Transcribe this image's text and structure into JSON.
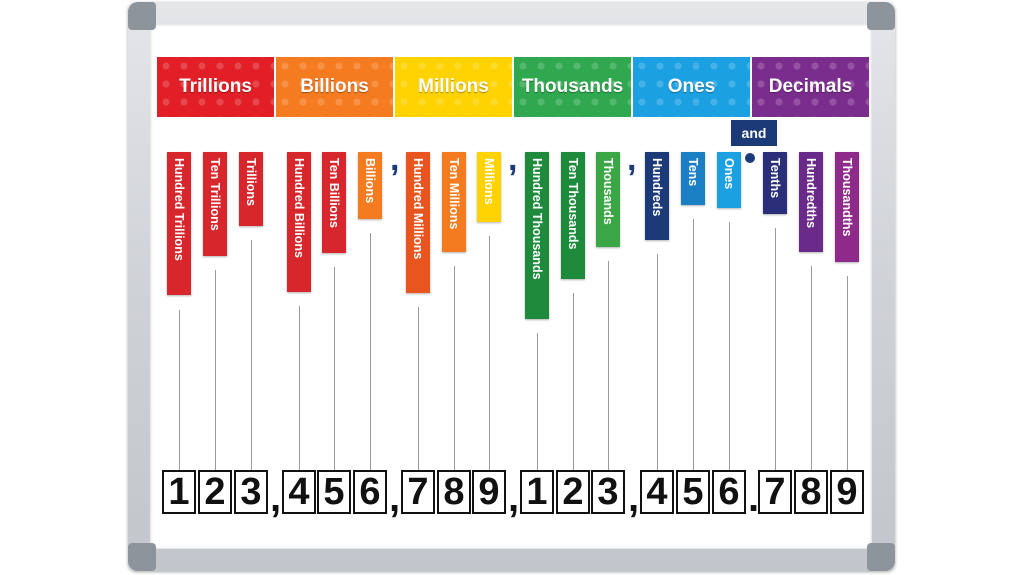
{
  "headers": [
    {
      "label": "Trillions",
      "color": "#e21f26"
    },
    {
      "label": "Billions",
      "color": "#f47b20"
    },
    {
      "label": "Millions",
      "color": "#ffd200"
    },
    {
      "label": "Thousands",
      "color": "#2fa84f"
    },
    {
      "label": "Ones",
      "color": "#1ba1e2"
    },
    {
      "label": "Decimals",
      "color": "#7b2d8e"
    }
  ],
  "and_label": "and",
  "place_values": [
    {
      "label": "Hundred Trillions",
      "color": "#d7262c"
    },
    {
      "label": "Ten Trillions",
      "color": "#d7262c"
    },
    {
      "label": "Trillions",
      "color": "#d7262c"
    },
    {
      "label": "Hundred Billions",
      "color": "#d7262c"
    },
    {
      "label": "Ten Billions",
      "color": "#d7262c"
    },
    {
      "label": "Billions",
      "color": "#f47b20"
    },
    {
      "label": "Hundred Millions",
      "color": "#e8551f"
    },
    {
      "label": "Ten Millions",
      "color": "#f47b20"
    },
    {
      "label": "Millions",
      "color": "#ffd200"
    },
    {
      "label": "Hundred Thousands",
      "color": "#1e8a3c"
    },
    {
      "label": "Ten Thousands",
      "color": "#1e8a3c"
    },
    {
      "label": "Thousands",
      "color": "#3aa645"
    },
    {
      "label": "Hundreds",
      "color": "#1c3a78"
    },
    {
      "label": "Tens",
      "color": "#1b7fc4"
    },
    {
      "label": "Ones",
      "color": "#1ba1e2"
    },
    {
      "label": "Tenths",
      "color": "#2b2f7a"
    },
    {
      "label": "Hundredths",
      "color": "#6a2a8a"
    },
    {
      "label": "Thousandths",
      "color": "#8e2a8a"
    }
  ],
  "digits": [
    "1",
    "2",
    "3",
    "4",
    "5",
    "6",
    "7",
    "8",
    "9",
    "1",
    "2",
    "3",
    "4",
    "5",
    "6",
    "7",
    "8",
    "9"
  ],
  "separators": {
    "comma": ",",
    "decimal_point": "."
  }
}
